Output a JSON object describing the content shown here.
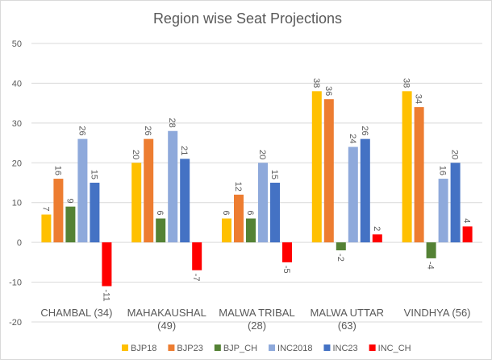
{
  "chart_data": {
    "type": "bar",
    "title": "Region wise Seat Projections",
    "categories": [
      "CHAMBAL (34)",
      "MAHAKAUSHAL (49)",
      "MALWA TRIBAL (28)",
      "MALWA UTTAR (63)",
      "VINDHYA (56)"
    ],
    "series": [
      {
        "name": "BJP18",
        "color": "#FFC000",
        "values": [
          7,
          20,
          6,
          38,
          38
        ]
      },
      {
        "name": "BJP23",
        "color": "#ED7D31",
        "values": [
          16,
          26,
          12,
          36,
          34
        ]
      },
      {
        "name": "BJP_CH",
        "color": "#548235",
        "values": [
          9,
          6,
          6,
          -2,
          -4
        ]
      },
      {
        "name": "INC2018",
        "color": "#8EA9DB",
        "values": [
          26,
          28,
          20,
          24,
          16
        ]
      },
      {
        "name": "INC23",
        "color": "#4472C4",
        "values": [
          15,
          21,
          15,
          26,
          20
        ]
      },
      {
        "name": "INC_CH",
        "color": "#FF0000",
        "values": [
          -11,
          -7,
          -5,
          2,
          4
        ]
      }
    ],
    "ylim": [
      -20,
      50
    ],
    "yticks": [
      -20,
      -10,
      0,
      10,
      20,
      30,
      40,
      50
    ],
    "grid": true,
    "legend": "bottom",
    "data_labels": true
  }
}
